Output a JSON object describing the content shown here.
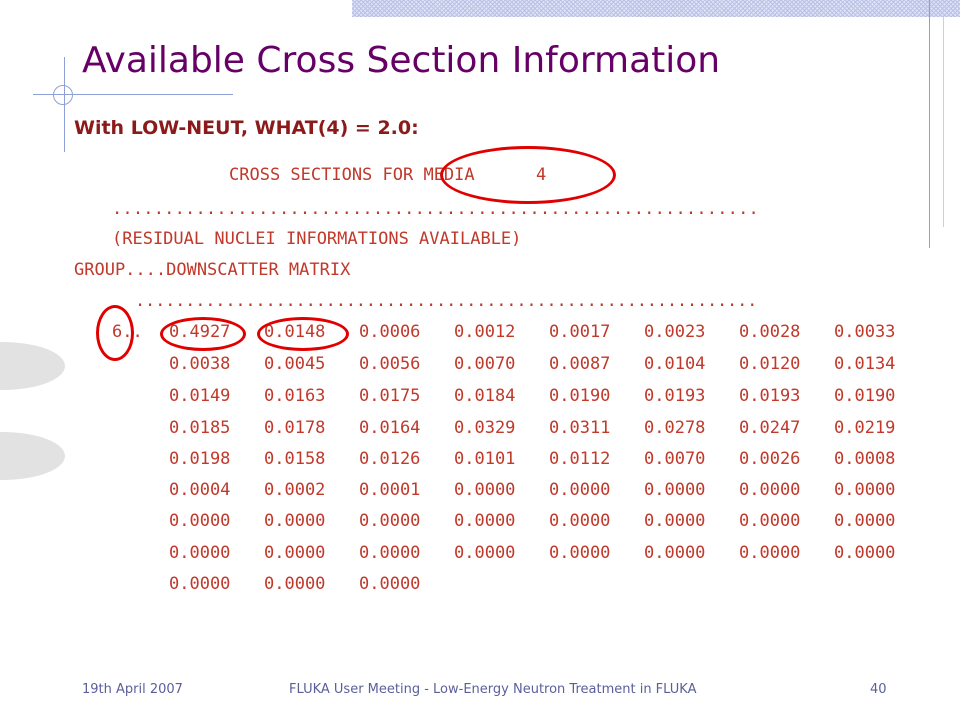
{
  "slide": {
    "title": "Available Cross Section Information",
    "subtitle": "With LOW-NEUT, WHAT(4) = 2.0:"
  },
  "printout": {
    "header": "CROSS SECTIONS FOR MEDIA      4",
    "dots_1": "..............................................................",
    "residual": "(RESIDUAL NUCLEI INFORMATIONS AVAILABLE)",
    "group_header": "GROUP....DOWNSCATTER MATRIX",
    "dots_2": "..............................................................",
    "group_prefix": "6..",
    "rows": [
      [
        "0.4927",
        "0.0148",
        "0.0006",
        "0.0012",
        "0.0017",
        "0.0023",
        "0.0028",
        "0.0033"
      ],
      [
        "0.0038",
        "0.0045",
        "0.0056",
        "0.0070",
        "0.0087",
        "0.0104",
        "0.0120",
        "0.0134"
      ],
      [
        "0.0149",
        "0.0163",
        "0.0175",
        "0.0184",
        "0.0190",
        "0.0193",
        "0.0193",
        "0.0190"
      ],
      [
        "0.0185",
        "0.0178",
        "0.0164",
        "0.0329",
        "0.0311",
        "0.0278",
        "0.0247",
        "0.0219"
      ],
      [
        "0.0198",
        "0.0158",
        "0.0126",
        "0.0101",
        "0.0112",
        "0.0070",
        "0.0026",
        "0.0008"
      ],
      [
        "0.0004",
        "0.0002",
        "0.0001",
        "0.0000",
        "0.0000",
        "0.0000",
        "0.0000",
        "0.0000"
      ],
      [
        "0.0000",
        "0.0000",
        "0.0000",
        "0.0000",
        "0.0000",
        "0.0000",
        "0.0000",
        "0.0000"
      ],
      [
        "0.0000",
        "0.0000",
        "0.0000",
        "0.0000",
        "0.0000",
        "0.0000",
        "0.0000",
        "0.0000"
      ],
      [
        "0.0000",
        "0.0000",
        "0.0000"
      ]
    ]
  },
  "footer": {
    "date": "19th April 2007",
    "center": "FLUKA User Meeting - Low-Energy Neutron Treatment in FLUKA",
    "page": "40"
  },
  "colors": {
    "title": "#660066",
    "subtitle": "#8b1a1a",
    "printout_text": "#c0392b",
    "highlight_ring": "#e10000",
    "footer_text": "#5a5f9a",
    "decor_lines": "#8fa0d8"
  }
}
